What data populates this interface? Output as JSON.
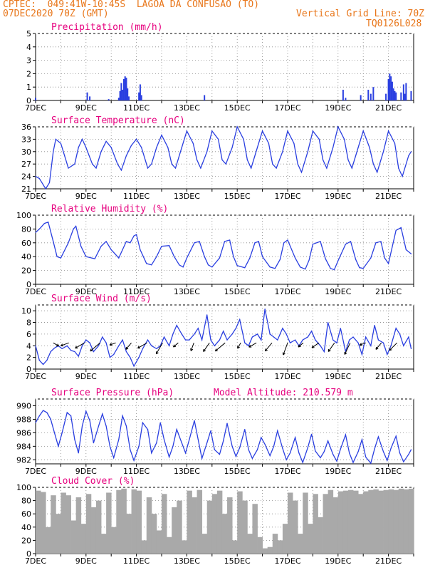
{
  "header": {
    "line1": "CPTEC:  049:41W-10:45S  LAGOA DA CONFUSAO (TO)",
    "line2": "07DEC2020 70Z (GMT)",
    "grid_note": "Vertical Grid Line: 70Z",
    "code": "TQ0126L028"
  },
  "colors": {
    "header": "#e8761a",
    "title": "#e6007e",
    "line": "#2a3fe0",
    "cloud": "#a9a9a9"
  },
  "x_tick_labels": [
    "7DEC",
    "9DEC",
    "11DEC",
    "13DEC",
    "15DEC",
    "17DEC",
    "19DEC",
    "21DEC"
  ],
  "chart_data": [
    {
      "id": "precip",
      "type": "bar",
      "title": "Precipitation (mm/h)",
      "ylim": [
        0,
        5
      ],
      "yticks": [
        "0",
        "1",
        "2",
        "3",
        "4",
        "5"
      ],
      "x_days": [
        0,
        2.05,
        2.15,
        2.9,
        3.3,
        3.35,
        3.4,
        3.45,
        3.5,
        3.55,
        3.6,
        3.65,
        3.7,
        4.1,
        4.15,
        4.2,
        6.7,
        12.2,
        12.3,
        12.9,
        13.2,
        13.3,
        13.4,
        13.9,
        14.0,
        14.05,
        14.1,
        14.15,
        14.2,
        14.25,
        14.3,
        14.5,
        14.6,
        14.65,
        14.7,
        14.9
      ],
      "values": [
        0.2,
        0.6,
        0.3,
        0.1,
        0.2,
        0.7,
        1.3,
        0.8,
        1.6,
        1.8,
        1.7,
        0.9,
        0.3,
        0.6,
        1.2,
        0.4,
        0.4,
        0.8,
        0.2,
        0.4,
        0.8,
        0.5,
        1.0,
        0.5,
        1.6,
        2.0,
        1.8,
        1.4,
        0.9,
        0.7,
        0.6,
        0.6,
        1.2,
        0.5,
        1.3,
        0.7
      ]
    },
    {
      "id": "temp",
      "type": "line",
      "title": "Surface Temperature (nC)",
      "ylim": [
        21,
        36
      ],
      "yticks": [
        "21",
        "24",
        "27",
        "30",
        "33",
        "36"
      ],
      "x_days": [
        0,
        0.15,
        0.3,
        0.4,
        0.55,
        0.7,
        0.8,
        1.0,
        1.15,
        1.3,
        1.55,
        1.7,
        1.85,
        2.0,
        2.25,
        2.4,
        2.6,
        2.8,
        3.0,
        3.25,
        3.4,
        3.6,
        3.8,
        4.0,
        4.2,
        4.35,
        4.45,
        4.6,
        4.8,
        5.0,
        5.25,
        5.4,
        5.55,
        5.8,
        6.0,
        6.25,
        6.4,
        6.55,
        6.8,
        7.0,
        7.25,
        7.4,
        7.55,
        7.8,
        8.0,
        8.25,
        8.4,
        8.55,
        8.8,
        9.0,
        9.25,
        9.4,
        9.55,
        9.8,
        10.0,
        10.25,
        10.4,
        10.55,
        10.8,
        11.0,
        11.25,
        11.4,
        11.55,
        11.8,
        12.0,
        12.25,
        12.4,
        12.55,
        12.8,
        13.0,
        13.25,
        13.4,
        13.55,
        13.8,
        14.0,
        14.25,
        14.4,
        14.55,
        14.8,
        14.9
      ],
      "values": [
        24,
        23.5,
        22,
        21,
        22.5,
        30,
        33,
        32,
        29,
        26,
        27,
        31,
        33,
        31,
        27,
        26,
        30,
        32.5,
        31,
        27,
        25.5,
        29,
        31.5,
        33,
        31,
        28,
        26,
        27,
        31,
        34,
        31,
        27,
        26,
        31,
        35,
        32,
        28,
        26,
        30,
        35,
        33,
        28,
        27,
        31,
        36,
        33,
        28,
        26,
        31,
        35,
        32,
        27,
        26,
        30,
        35,
        32,
        27,
        25,
        30,
        35,
        33,
        28,
        26,
        31,
        36,
        33,
        28,
        26,
        31,
        35,
        31,
        27,
        25,
        30,
        35,
        32,
        26,
        24,
        29,
        30
      ]
    },
    {
      "id": "rh",
      "type": "line",
      "title": "Relative Humidity (%)",
      "ylim": [
        0,
        100
      ],
      "yticks": [
        "0",
        "20",
        "40",
        "60",
        "80",
        "100"
      ],
      "x_days": [
        0,
        0.15,
        0.35,
        0.5,
        0.7,
        0.85,
        1.0,
        1.3,
        1.5,
        1.6,
        1.8,
        2.0,
        2.35,
        2.6,
        2.8,
        3.0,
        3.3,
        3.45,
        3.6,
        3.75,
        3.9,
        4.0,
        4.15,
        4.4,
        4.6,
        4.8,
        5.0,
        5.3,
        5.5,
        5.7,
        5.85,
        6.0,
        6.3,
        6.5,
        6.7,
        6.85,
        7.0,
        7.3,
        7.5,
        7.7,
        7.85,
        8.0,
        8.3,
        8.5,
        8.7,
        8.85,
        9.0,
        9.3,
        9.5,
        9.7,
        9.85,
        10.0,
        10.3,
        10.5,
        10.7,
        10.85,
        11.0,
        11.3,
        11.5,
        11.7,
        11.85,
        12.0,
        12.3,
        12.5,
        12.7,
        12.85,
        13.0,
        13.3,
        13.5,
        13.7,
        13.85,
        14.0,
        14.3,
        14.5,
        14.7,
        14.9
      ],
      "values": [
        75,
        80,
        88,
        90,
        62,
        40,
        38,
        60,
        80,
        84,
        55,
        40,
        37,
        55,
        62,
        50,
        38,
        50,
        62,
        60,
        70,
        72,
        50,
        30,
        28,
        40,
        55,
        56,
        40,
        28,
        25,
        38,
        60,
        62,
        40,
        28,
        25,
        38,
        62,
        64,
        40,
        27,
        24,
        38,
        60,
        62,
        40,
        25,
        23,
        36,
        60,
        64,
        38,
        25,
        22,
        35,
        58,
        62,
        37,
        23,
        21,
        34,
        58,
        62,
        36,
        24,
        23,
        38,
        60,
        62,
        38,
        30,
        78,
        82,
        50,
        44
      ]
    },
    {
      "id": "wind",
      "type": "line",
      "title": "Surface Wind (m/s)",
      "ylim": [
        0,
        11
      ],
      "yticks": [
        "0",
        "2",
        "4",
        "6",
        "8",
        "10"
      ],
      "x_days": [
        0,
        0.15,
        0.3,
        0.45,
        0.6,
        0.75,
        0.9,
        1.05,
        1.25,
        1.4,
        1.55,
        1.7,
        1.85,
        2.0,
        2.15,
        2.3,
        2.5,
        2.65,
        2.8,
        2.95,
        3.1,
        3.3,
        3.45,
        3.6,
        3.75,
        3.9,
        4.1,
        4.25,
        4.45,
        4.6,
        4.8,
        4.95,
        5.1,
        5.3,
        5.45,
        5.6,
        5.8,
        5.95,
        6.1,
        6.3,
        6.45,
        6.6,
        6.8,
        6.95,
        7.1,
        7.3,
        7.45,
        7.6,
        7.8,
        7.95,
        8.1,
        8.3,
        8.45,
        8.6,
        8.8,
        8.95,
        9.1,
        9.3,
        9.45,
        9.6,
        9.8,
        9.95,
        10.1,
        10.3,
        10.45,
        10.6,
        10.8,
        10.95,
        11.1,
        11.3,
        11.45,
        11.6,
        11.8,
        11.95,
        12.1,
        12.3,
        12.45,
        12.6,
        12.8,
        12.95,
        13.1,
        13.3,
        13.45,
        13.6,
        13.8,
        13.95,
        14.1,
        14.3,
        14.45,
        14.6,
        14.8,
        14.9
      ],
      "values": [
        4,
        1.5,
        0.8,
        1.5,
        3,
        3.6,
        4,
        3.5,
        4,
        3.2,
        3,
        2.2,
        4,
        5,
        4.5,
        3,
        4,
        5.5,
        4.5,
        2,
        2.5,
        4,
        5,
        3,
        2,
        0.5,
        2,
        3.5,
        5,
        4,
        3.5,
        4,
        5.5,
        4,
        6,
        7.5,
        6,
        5,
        5,
        6,
        7,
        5,
        9.3,
        5,
        4,
        5,
        6.5,
        5,
        6,
        7,
        8.5,
        4.5,
        4,
        5.5,
        6,
        5,
        10.3,
        6,
        5.5,
        5,
        7,
        6,
        4.5,
        5,
        4,
        5,
        5.5,
        6.5,
        5,
        4,
        3,
        8,
        5,
        4.5,
        7,
        3,
        5,
        5.5,
        4.5,
        2.5,
        5.5,
        4,
        7.5,
        5,
        4.5,
        2.5,
        4,
        7,
        6,
        4,
        5.5,
        3.5
      ]
    },
    {
      "id": "pres",
      "type": "line",
      "title": "Surface Pressure (hPa)",
      "subtitle": "Model Altitude: 210.579 m",
      "ylim": [
        981.4,
        991
      ],
      "yticks": [
        "982",
        "984",
        "986",
        "988",
        "990"
      ],
      "x_days": [
        0,
        0.15,
        0.3,
        0.45,
        0.6,
        0.75,
        0.9,
        1.05,
        1.25,
        1.4,
        1.55,
        1.7,
        1.85,
        2.0,
        2.15,
        2.3,
        2.5,
        2.65,
        2.8,
        2.95,
        3.1,
        3.3,
        3.45,
        3.6,
        3.75,
        3.9,
        4.1,
        4.25,
        4.45,
        4.6,
        4.8,
        4.95,
        5.1,
        5.3,
        5.45,
        5.6,
        5.8,
        5.95,
        6.1,
        6.3,
        6.45,
        6.6,
        6.8,
        6.95,
        7.1,
        7.3,
        7.45,
        7.6,
        7.8,
        7.95,
        8.1,
        8.3,
        8.45,
        8.6,
        8.8,
        8.95,
        9.1,
        9.3,
        9.45,
        9.6,
        9.8,
        9.95,
        10.1,
        10.3,
        10.45,
        10.6,
        10.8,
        10.95,
        11.1,
        11.3,
        11.45,
        11.6,
        11.8,
        11.95,
        12.1,
        12.3,
        12.45,
        12.6,
        12.8,
        12.95,
        13.1,
        13.3,
        13.45,
        13.6,
        13.8,
        13.95,
        14.1,
        14.3,
        14.45,
        14.6,
        14.8,
        14.9
      ],
      "values": [
        987.5,
        988.5,
        989.3,
        989,
        988,
        986,
        984,
        986,
        989,
        988.5,
        985,
        983,
        987,
        989.2,
        987.8,
        984.5,
        987,
        988.8,
        987,
        984,
        982.3,
        985,
        988.5,
        987,
        983.5,
        981.9,
        984,
        987.5,
        986.5,
        983,
        984.5,
        987.5,
        985,
        982.4,
        984,
        986.5,
        984.5,
        983,
        985,
        987.8,
        985,
        982.2,
        984.5,
        986.3,
        983.5,
        982.8,
        984.8,
        987.4,
        984,
        982.5,
        983.8,
        986.5,
        983.5,
        982.2,
        983.5,
        985.3,
        984.3,
        982.6,
        984,
        986.3,
        983.7,
        982,
        983,
        985.3,
        983,
        981.6,
        983.8,
        985.8,
        983.3,
        982.3,
        983.2,
        984.8,
        982.8,
        981.8,
        983.6,
        985.7,
        983,
        981.6,
        983.2,
        985,
        982.4,
        981.5,
        983.6,
        985.4,
        983.2,
        981.9,
        983.7,
        985.5,
        983,
        981.7,
        982.8,
        983.5
      ]
    },
    {
      "id": "cloud",
      "type": "bar",
      "title": "Cloud Cover (%)",
      "ylim": [
        0,
        100
      ],
      "yticks": [
        "0",
        "20",
        "40",
        "60",
        "80",
        "100"
      ],
      "x_days": [
        0,
        0.2,
        0.4,
        0.6,
        0.8,
        1.0,
        1.2,
        1.4,
        1.6,
        1.8,
        2.0,
        2.2,
        2.4,
        2.6,
        2.8,
        3.0,
        3.2,
        3.4,
        3.6,
        3.8,
        4.0,
        4.2,
        4.4,
        4.6,
        4.8,
        5.0,
        5.2,
        5.4,
        5.6,
        5.8,
        6.0,
        6.2,
        6.4,
        6.6,
        6.8,
        7.0,
        7.2,
        7.4,
        7.6,
        7.8,
        8.0,
        8.2,
        8.4,
        8.6,
        8.8,
        9.0,
        9.2,
        9.4,
        9.6,
        9.8,
        10.0,
        10.2,
        10.4,
        10.6,
        10.8,
        11.0,
        11.2,
        11.4,
        11.6,
        11.8,
        12.0,
        12.2,
        12.4,
        12.6,
        12.8,
        13.0,
        13.2,
        13.4,
        13.6,
        13.8,
        14.0,
        14.2,
        14.4,
        14.6,
        14.8
      ],
      "values": [
        95,
        93,
        40,
        88,
        60,
        92,
        88,
        50,
        85,
        45,
        90,
        70,
        80,
        30,
        92,
        40,
        96,
        98,
        60,
        97,
        95,
        20,
        85,
        60,
        35,
        90,
        25,
        70,
        80,
        20,
        95,
        85,
        96,
        30,
        80,
        90,
        95,
        60,
        85,
        20,
        94,
        80,
        30,
        75,
        25,
        8,
        10,
        30,
        20,
        45,
        92,
        80,
        30,
        92,
        45,
        90,
        55,
        90,
        96,
        85,
        94,
        95,
        96,
        95,
        90,
        94,
        96,
        97,
        95,
        96,
        97,
        96,
        98,
        97,
        98
      ]
    }
  ]
}
